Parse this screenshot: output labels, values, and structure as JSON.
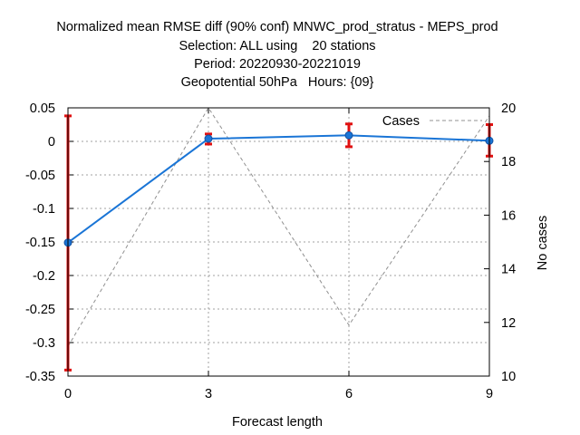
{
  "chart_data": {
    "type": "line",
    "title_lines": [
      "Normalized mean RMSE diff (90% conf) MNWC_prod_stratus - MEPS_prod",
      "Selection: ALL using    20 stations",
      "Period: 20220930-20221019",
      "Geopotential 50hPa   Hours: {09}"
    ],
    "xlabel": "Forecast length",
    "ylabel": "",
    "y2label": "No cases",
    "x": [
      0,
      3,
      6,
      9
    ],
    "xlim": [
      0,
      9
    ],
    "x_ticks": [
      "0",
      "3",
      "6",
      "9"
    ],
    "ylim": [
      -0.35,
      0.05
    ],
    "y_ticks": [
      "0.05",
      "0",
      "-0.05",
      "-0.1",
      "-0.15",
      "-0.2",
      "-0.25",
      "-0.3",
      "-0.35"
    ],
    "y2lim": [
      10,
      20
    ],
    "y2_ticks": [
      "20",
      "18",
      "16",
      "14",
      "12",
      "10"
    ],
    "grid": true,
    "legend_position": "top-right",
    "series": [
      {
        "name": "",
        "axis": "left",
        "color": "#1a75d6",
        "values": [
          -0.151,
          0.004,
          0.009,
          0.001
        ],
        "err_low": [
          -0.341,
          -0.004,
          -0.008,
          -0.022
        ],
        "err_high": [
          0.038,
          0.011,
          0.026,
          0.025
        ],
        "err_color": "#e01010"
      },
      {
        "name": "Cases",
        "axis": "right",
        "color": "#909090",
        "dashed": true,
        "values": [
          11.1,
          20,
          11.9,
          19.7
        ]
      }
    ]
  }
}
